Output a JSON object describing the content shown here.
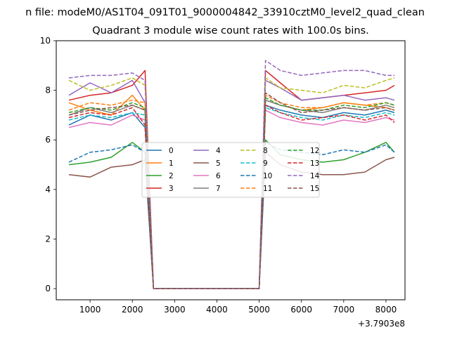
{
  "chart_data": {
    "type": "line",
    "suptitle": "n file: modeM0/AS1T04_091T01_9000004842_33910cztM0_level2_quad_clean",
    "title": "Quadrant 3 module wise count rates with 100.0s bins.",
    "xlabel": "",
    "ylabel": "",
    "x_offset_label": "+3.7903e8",
    "xlim": [
      200,
      8450
    ],
    "ylim": [
      -0.45,
      10.0
    ],
    "xticks": [
      1000,
      2000,
      3000,
      4000,
      5000,
      6000,
      7000,
      8000
    ],
    "yticks": [
      0,
      2,
      4,
      6,
      8,
      10
    ],
    "x": [
      500,
      1000,
      1500,
      2000,
      2300,
      2500,
      3000,
      4000,
      5000,
      5150,
      5500,
      6000,
      6500,
      7000,
      7500,
      8000,
      8200
    ],
    "series": [
      {
        "name": "0",
        "color": "#1f77b4",
        "dash": "solid",
        "values": [
          6.6,
          7.0,
          6.8,
          7.1,
          6.5,
          0,
          0,
          0,
          0,
          7.4,
          7.2,
          7.0,
          6.9,
          7.1,
          7.0,
          7.2,
          7.1
        ]
      },
      {
        "name": "1",
        "color": "#ff7f0e",
        "dash": "solid",
        "values": [
          7.5,
          7.2,
          7.0,
          7.8,
          7.2,
          0,
          0,
          0,
          0,
          7.6,
          7.4,
          7.2,
          7.3,
          7.5,
          7.4,
          7.3,
          7.2
        ]
      },
      {
        "name": "2",
        "color": "#2ca02c",
        "dash": "solid",
        "values": [
          5.0,
          5.1,
          5.3,
          5.9,
          5.5,
          0,
          0,
          0,
          0,
          6.0,
          5.4,
          5.2,
          5.1,
          5.2,
          5.5,
          5.9,
          5.5
        ]
      },
      {
        "name": "3",
        "color": "#d62728",
        "dash": "solid",
        "values": [
          7.6,
          7.8,
          7.9,
          8.2,
          8.8,
          0,
          0,
          0,
          0,
          8.8,
          8.3,
          7.6,
          7.7,
          7.8,
          7.9,
          8.0,
          8.2
        ]
      },
      {
        "name": "4",
        "color": "#9467bd",
        "dash": "solid",
        "values": [
          7.8,
          8.3,
          7.9,
          8.4,
          7.5,
          0,
          0,
          0,
          0,
          8.4,
          8.1,
          7.6,
          7.7,
          7.8,
          7.6,
          7.7,
          7.6
        ]
      },
      {
        "name": "5",
        "color": "#8c564b",
        "dash": "solid",
        "values": [
          4.6,
          4.5,
          4.9,
          5.0,
          5.2,
          0,
          0,
          0,
          0,
          5.5,
          5.0,
          4.7,
          4.6,
          4.6,
          4.7,
          5.2,
          5.3
        ]
      },
      {
        "name": "6",
        "color": "#e377c2",
        "dash": "solid",
        "values": [
          6.5,
          6.7,
          6.6,
          7.0,
          6.8,
          0,
          0,
          0,
          0,
          7.2,
          6.9,
          6.7,
          6.6,
          6.8,
          6.7,
          6.9,
          6.8
        ]
      },
      {
        "name": "7",
        "color": "#7f7f7f",
        "dash": "solid",
        "values": [
          7.0,
          7.3,
          7.1,
          7.4,
          7.2,
          0,
          0,
          0,
          0,
          7.6,
          7.4,
          7.2,
          7.1,
          7.3,
          7.2,
          7.4,
          7.3
        ]
      },
      {
        "name": "8",
        "color": "#bcbd22",
        "dash": "dashed",
        "values": [
          8.4,
          8.0,
          8.2,
          8.5,
          8.2,
          0,
          0,
          0,
          0,
          8.5,
          8.1,
          8.0,
          7.9,
          8.2,
          8.1,
          8.4,
          8.5
        ]
      },
      {
        "name": "9",
        "color": "#17becf",
        "dash": "dashed",
        "values": [
          6.8,
          7.0,
          6.9,
          7.1,
          7.0,
          0,
          0,
          0,
          0,
          7.3,
          7.1,
          6.9,
          6.8,
          7.0,
          6.9,
          7.1,
          7.0
        ]
      },
      {
        "name": "10",
        "color": "#1f77b4",
        "dash": "dashed",
        "values": [
          5.1,
          5.5,
          5.6,
          5.8,
          5.5,
          0,
          0,
          0,
          0,
          5.9,
          5.6,
          5.5,
          5.4,
          5.6,
          5.5,
          5.8,
          5.5
        ]
      },
      {
        "name": "11",
        "color": "#ff7f0e",
        "dash": "dashed",
        "values": [
          7.2,
          7.5,
          7.4,
          7.6,
          7.5,
          0,
          0,
          0,
          0,
          7.8,
          7.5,
          7.3,
          7.3,
          7.5,
          7.4,
          7.5,
          7.4
        ]
      },
      {
        "name": "12",
        "color": "#2ca02c",
        "dash": "dashed",
        "values": [
          7.1,
          7.3,
          7.2,
          7.5,
          7.3,
          0,
          0,
          0,
          0,
          7.7,
          7.4,
          7.2,
          7.2,
          7.4,
          7.3,
          7.5,
          7.4
        ]
      },
      {
        "name": "13",
        "color": "#d62728",
        "dash": "dashed",
        "values": [
          6.9,
          7.1,
          7.0,
          7.3,
          6.6,
          0,
          0,
          0,
          0,
          7.4,
          7.1,
          6.8,
          6.9,
          7.0,
          6.8,
          7.0,
          6.7
        ]
      },
      {
        "name": "14",
        "color": "#9467bd",
        "dash": "dashed",
        "values": [
          8.5,
          8.6,
          8.6,
          8.7,
          8.4,
          0,
          0,
          0,
          0,
          9.2,
          8.8,
          8.6,
          8.7,
          8.8,
          8.8,
          8.6,
          8.6
        ]
      },
      {
        "name": "15",
        "color": "#8c564b",
        "dash": "dashed",
        "values": [
          7.0,
          7.2,
          7.3,
          7.4,
          7.2,
          0,
          0,
          0,
          0,
          7.9,
          7.5,
          7.1,
          7.2,
          7.3,
          7.2,
          7.3,
          7.2
        ]
      }
    ],
    "legend": {
      "position": "center",
      "columns": 4
    }
  }
}
